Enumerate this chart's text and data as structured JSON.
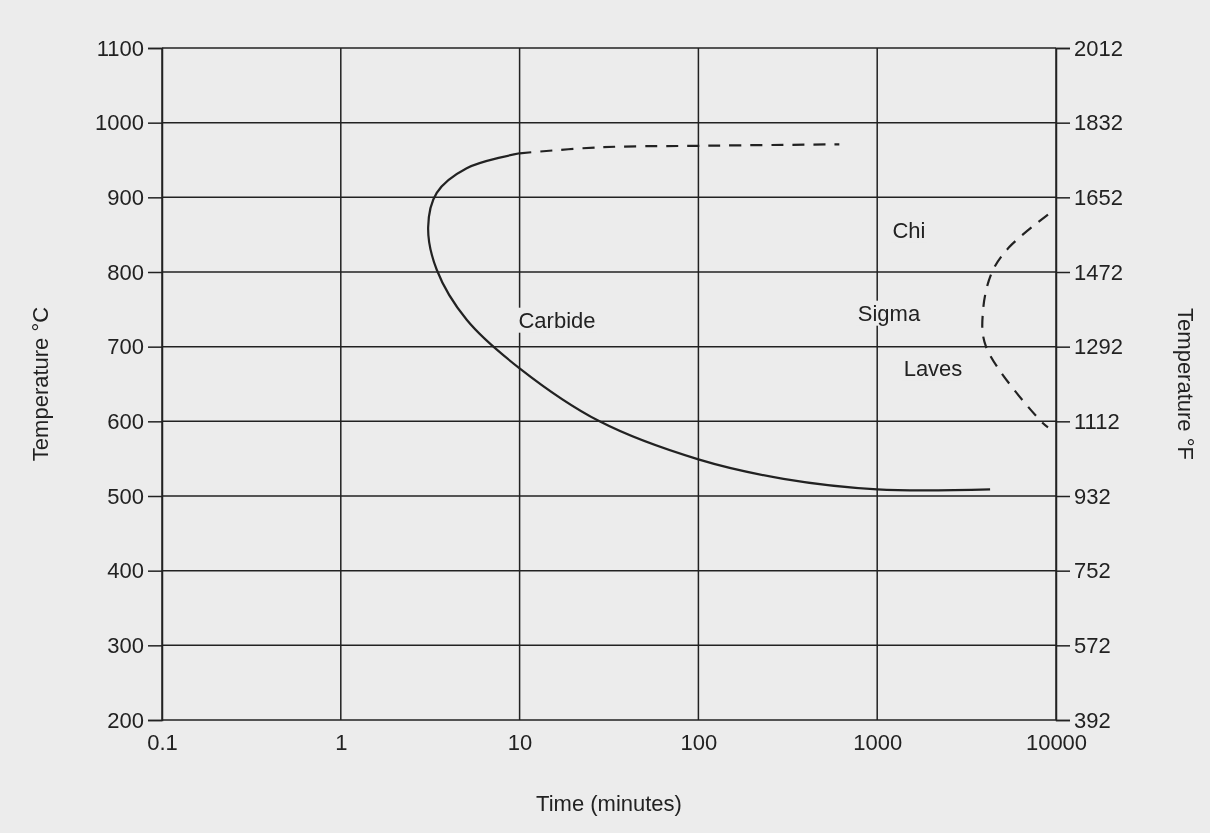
{
  "chart_data": {
    "type": "line",
    "xlabel": "Time (minutes)",
    "ylabel": "Temperature °C",
    "y2label": "Temperature °F",
    "log": "x",
    "grid": true,
    "marker": "none",
    "xlim": [
      0.1,
      10000
    ],
    "xticks": [
      0.1,
      1,
      10,
      100,
      1000,
      10000
    ],
    "ylim": [
      200,
      1100
    ],
    "yticks": [
      200,
      300,
      400,
      500,
      600,
      700,
      800,
      900,
      1000,
      1100
    ],
    "y2lim": [
      392,
      2012
    ],
    "y2ticks": [
      392,
      572,
      752,
      932,
      1112,
      1292,
      1472,
      1652,
      1832,
      2012
    ],
    "series": [
      {
        "color": "#222222",
        "line_style": "solid",
        "x": [
          4280,
          1000,
          299,
          100,
          28,
          10,
          5.06,
          3.44,
          3.08,
          3.44,
          5.06,
          10
        ],
        "values": [
          509,
          509,
          523,
          549,
          600,
          671,
          736,
          803,
          860,
          906,
          939,
          959
        ]
      },
      {
        "color": "#222222",
        "line_style": "dashed",
        "x": [
          10,
          28,
          100,
          614
        ],
        "values": [
          959,
          967,
          969,
          971
        ]
      },
      {
        "color": "#222222",
        "line_style": "dashed",
        "x": [
          9020,
          5460,
          4390,
          3910,
          4060,
          8240,
          9020
        ],
        "values": [
          877,
          833,
          800,
          749,
          700,
          600,
          592
        ]
      }
    ],
    "annotations": [
      "Carbide",
      "Chi",
      "Sigma",
      "Laves"
    ]
  }
}
